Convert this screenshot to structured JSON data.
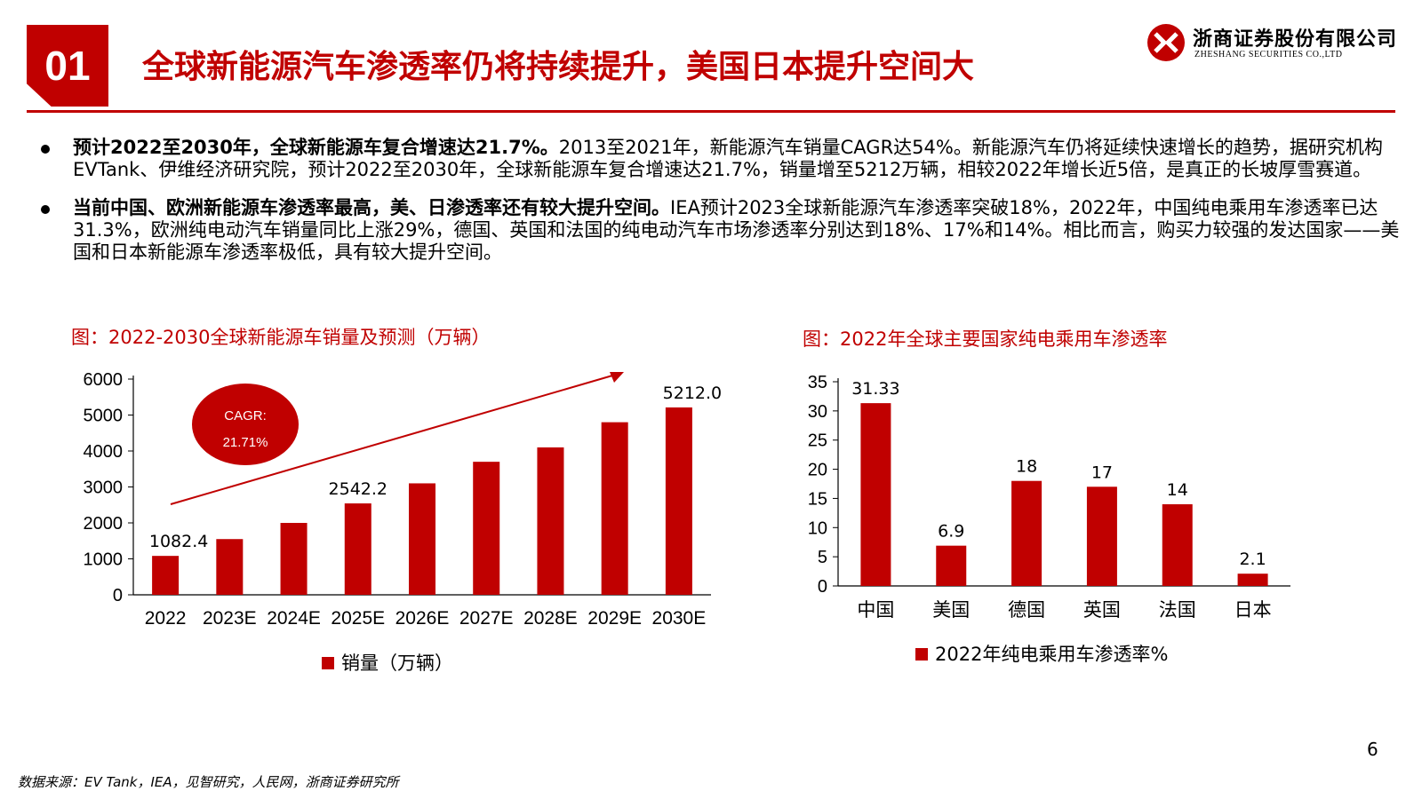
{
  "header": {
    "badge": "01",
    "title": "全球新能源汽车渗透率仍将持续提升，美国日本提升空间大",
    "logo_cn": "浙商证券股份有限公司",
    "logo_en": "ZHESHANG SECURITIES CO.,LTD",
    "accent": "#c00000"
  },
  "bullets": [
    {
      "bold": "预计2022至2030年，全球新能源车复合增速达21.7%。",
      "text": "2013至2021年，新能源汽车销量CAGR达54%。新能源汽车仍将延续快速增长的趋势，据研究机构EVTank、伊维经济研究院，预计2022至2030年，全球新能源车复合增速达21.7%，销量增至5212万辆，相较2022年增长近5倍，是真正的长坡厚雪赛道。"
    },
    {
      "bold": "当前中国、欧洲新能源车渗透率最高，美、日渗透率还有较大提升空间。",
      "text": "IEA预计2023全球新能源汽车渗透率突破18%，2022年，中国纯电乘用车渗透率已达31.3%，欧洲纯电动汽车销量同比上涨29%，德国、英国和法国的纯电动汽车市场渗透率分别达到18%、17%和14%。相比而言，购买力较强的发达国家——美国和日本新能源车渗透率极低，具有较大提升空间。"
    }
  ],
  "chart_data": [
    {
      "type": "bar",
      "title": "图：2022-2030全球新能源车销量及预测（万辆）",
      "categories": [
        "2022",
        "2023E",
        "2024E",
        "2025E",
        "2026E",
        "2027E",
        "2028E",
        "2029E",
        "2030E"
      ],
      "series": [
        {
          "name": "销量（万辆）",
          "values": [
            1082.4,
            1550,
            2000,
            2542.2,
            3100,
            3700,
            4100,
            4800,
            5212.0
          ]
        }
      ],
      "data_labels": {
        "0": "1082.4",
        "3": "2542.2",
        "8": "5212.0"
      },
      "yticks": [
        "0",
        "1000",
        "2000",
        "3000",
        "4000",
        "5000",
        "6000"
      ],
      "ylim": [
        0,
        6000
      ],
      "annotation": {
        "line1": "CAGR:",
        "line2": "21.71%"
      },
      "legend": "bottom",
      "color": "#c00000"
    },
    {
      "type": "bar",
      "title": "图：2022年全球主要国家纯电乘用车渗透率",
      "categories": [
        "中国",
        "美国",
        "德国",
        "英国",
        "法国",
        "日本"
      ],
      "series": [
        {
          "name": "2022年纯电乘用车渗透率%",
          "values": [
            31.33,
            6.9,
            18,
            17,
            14,
            2.1
          ]
        }
      ],
      "data_labels": [
        "31.33",
        "6.9",
        "18",
        "17",
        "14",
        "2.1"
      ],
      "yticks": [
        "0",
        "5",
        "10",
        "15",
        "20",
        "25",
        "30",
        "35"
      ],
      "ylim": [
        0,
        35
      ],
      "legend": "bottom",
      "color": "#c00000"
    }
  ],
  "footer": {
    "source": "数据来源：EV Tank，IEA，见智研究，人民网，浙商证券研究所",
    "page": "6"
  }
}
